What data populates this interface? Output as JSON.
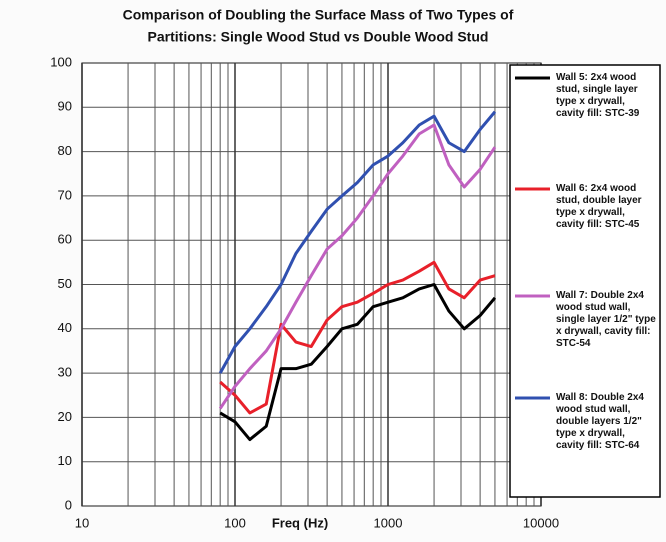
{
  "chart_data": {
    "type": "line",
    "title": [
      "Comparison of Doubling the Surface Mass of Two Types of",
      "Partitions: Single Wood Stud vs Double Wood Stud"
    ],
    "x_label": "Freq (Hz)",
    "x": [
      80,
      100,
      125,
      160,
      200,
      250,
      315,
      400,
      500,
      630,
      800,
      1000,
      1250,
      1600,
      2000,
      2500,
      3150,
      4000,
      5000
    ],
    "series": [
      {
        "name": "Wall 5: 2x4 wood stud, single layer type x drywall, cavity fill: STC-39",
        "color": "#000000",
        "values": [
          21,
          19,
          15,
          18,
          31,
          31,
          32,
          36,
          40,
          41,
          45,
          46,
          47,
          49,
          50,
          44,
          40,
          43,
          47
        ]
      },
      {
        "name": "Wall 6: 2x4 wood stud, double layer type x drywall, cavity fill: STC-45",
        "color": "#e8202a",
        "values": [
          28,
          25,
          21,
          23,
          41,
          37,
          36,
          42,
          45,
          46,
          48,
          50,
          51,
          53,
          55,
          49,
          47,
          51,
          52
        ]
      },
      {
        "name": "Wall 7: Double 2x4 wood stud wall, single layer 1/2\" type x drywall, cavity fill: STC-54",
        "color": "#c060c0",
        "values": [
          22,
          27,
          31,
          35,
          40,
          46,
          52,
          58,
          61,
          65,
          70,
          75,
          79,
          84,
          86,
          77,
          72,
          76,
          81
        ]
      },
      {
        "name": "Wall 8: Double 2x4 wood stud wall, double layers 1/2\" type x drywall, cavity fill: STC-64",
        "color": "#3050b0",
        "values": [
          30,
          36,
          40,
          45,
          50,
          57,
          62,
          67,
          70,
          73,
          77,
          79,
          82,
          86,
          88,
          82,
          80,
          85,
          89
        ]
      }
    ],
    "xscale": "log",
    "xlim": [
      10,
      10000
    ],
    "xticks": [
      10,
      100,
      1000,
      10000
    ],
    "xgrid_minor": [
      20,
      30,
      40,
      50,
      60,
      70,
      80,
      90,
      200,
      300,
      400,
      500,
      600,
      700,
      800,
      900,
      2000,
      3000,
      4000,
      5000,
      6000,
      7000,
      8000,
      9000
    ],
    "ylim": [
      0,
      100
    ],
    "yticks": [
      0,
      10,
      20,
      30,
      40,
      50,
      60,
      70,
      80,
      90,
      100
    ],
    "grid": true,
    "legend": "right"
  }
}
